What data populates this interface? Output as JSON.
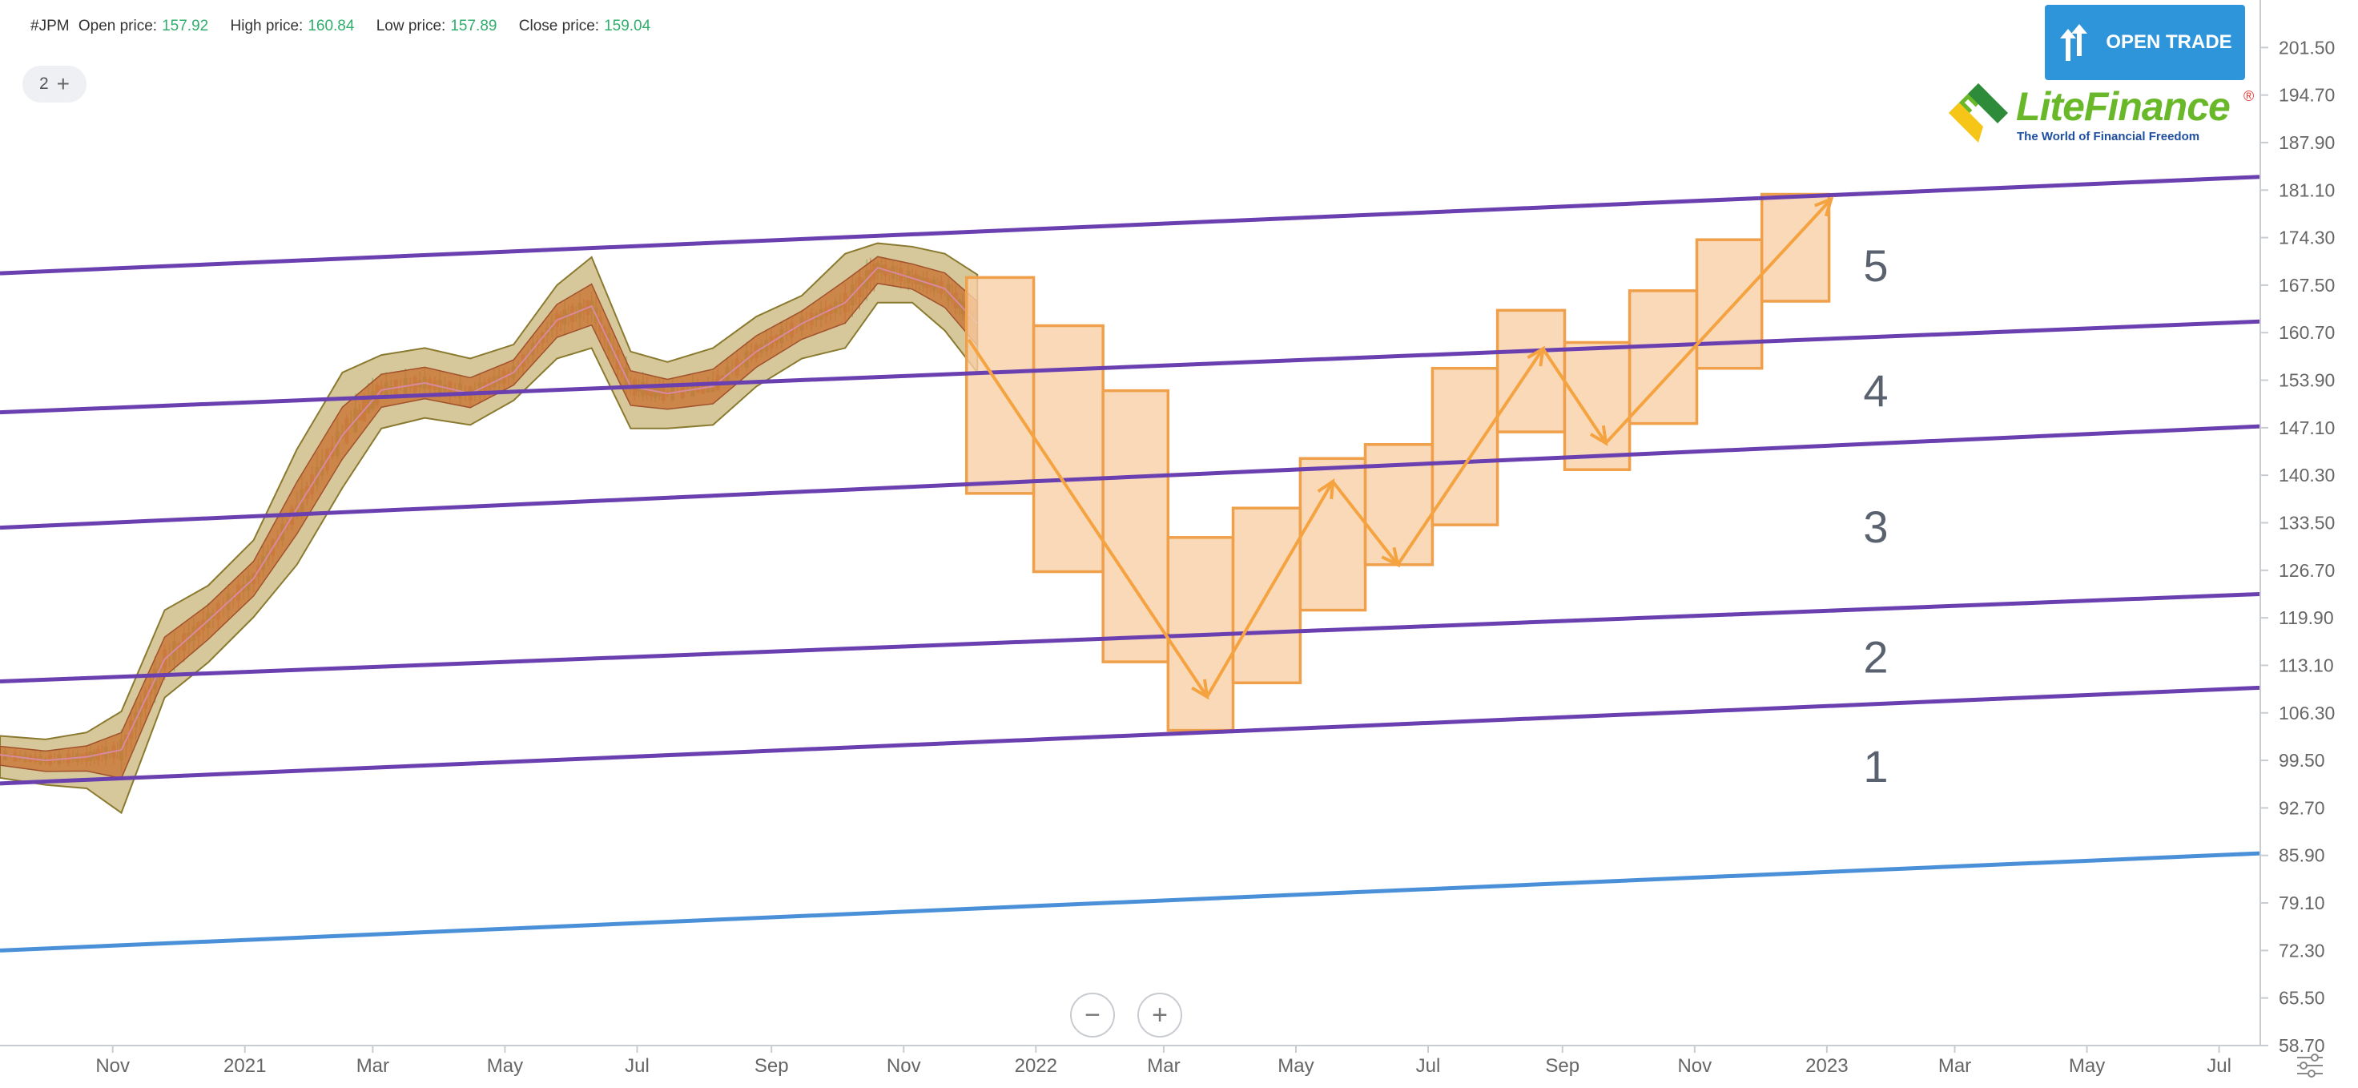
{
  "header": {
    "symbol": "#JPM",
    "open_label": "Open price:",
    "open_value": "157.92",
    "high_label": "High price:",
    "high_value": "160.84",
    "low_label": "Low price:",
    "low_value": "157.89",
    "close_label": "Close price:",
    "close_value": "159.04"
  },
  "layers": {
    "count": "2",
    "plus": "+"
  },
  "open_trade": {
    "label": "OPEN TRADE",
    "icon": "updown-arrows-icon"
  },
  "logo": {
    "name": "LiteFinance",
    "tagline": "The World of Financial Freedom",
    "reg": "®"
  },
  "zoom": {
    "minus": "−",
    "plus": "+"
  },
  "colors": {
    "channel": "#6a3fb0",
    "base_line": "#4a90d9",
    "box_fill": "#f8cfa6",
    "box_stroke": "#f0a04a",
    "band": "#c9b67a",
    "band_inner": "#c8702e",
    "up": "#2e9e4a",
    "down": "#d33a3a",
    "axis_text": "#666666",
    "zone_label": "#5a6270"
  },
  "chart_data": {
    "type": "candlestick",
    "y_ticks": [
      "201.50",
      "194.70",
      "187.90",
      "181.10",
      "174.30",
      "167.50",
      "160.70",
      "153.90",
      "147.10",
      "140.30",
      "133.50",
      "126.70",
      "119.90",
      "113.10",
      "106.30",
      "99.50",
      "92.70",
      "85.90",
      "79.10",
      "72.30",
      "65.50",
      "58.70"
    ],
    "ylim": [
      58.7,
      208.3
    ],
    "x_ticks": [
      "Nov",
      "2021",
      "Mar",
      "May",
      "Jul",
      "Sep",
      "Nov",
      "2022",
      "Mar",
      "May",
      "Jul",
      "Sep",
      "Nov",
      "2023",
      "Mar",
      "May",
      "Jul"
    ],
    "xlim": [
      "2020-09-10",
      "2023-07-20"
    ],
    "zone_labels": [
      "5",
      "4",
      "3",
      "2",
      "1"
    ],
    "channel_lines": [
      {
        "name": "",
        "start": [
          "2020-09-10",
          169.2
        ],
        "end": [
          "2023-07-20",
          183.0
        ]
      },
      {
        "name": "",
        "start": [
          "2020-09-10",
          149.3
        ],
        "end": [
          "2023-07-20",
          162.3
        ]
      },
      {
        "name": "",
        "start": [
          "2020-09-10",
          132.8
        ],
        "end": [
          "2023-07-20",
          147.3
        ]
      },
      {
        "name": "",
        "start": [
          "2020-09-10",
          110.8
        ],
        "end": [
          "2023-07-20",
          123.3
        ]
      },
      {
        "name": "",
        "start": [
          "2020-09-10",
          96.2
        ],
        "end": [
          "2023-07-20",
          109.9
        ]
      }
    ],
    "base_line": {
      "start": [
        "2020-09-10",
        72.3
      ],
      "end": [
        "2023-07-20",
        86.2
      ]
    },
    "price_band": {
      "dates": [
        "2020-09-10",
        "2020-10-01",
        "2020-10-20",
        "2020-11-05",
        "2020-11-25",
        "2020-12-15",
        "2021-01-05",
        "2021-01-25",
        "2021-02-15",
        "2021-03-05",
        "2021-03-25",
        "2021-04-15",
        "2021-05-05",
        "2021-05-25",
        "2021-06-10",
        "2021-06-28",
        "2021-07-15",
        "2021-08-05",
        "2021-08-25",
        "2021-09-15",
        "2021-10-05",
        "2021-10-20",
        "2021-11-05",
        "2021-11-20",
        "2021-12-05"
      ],
      "mid": [
        100.3,
        99.5,
        100.0,
        101.0,
        114.0,
        119.5,
        125.5,
        135.5,
        146.0,
        152.5,
        153.5,
        152.0,
        155.0,
        162.5,
        164.5,
        153.0,
        152.0,
        153.0,
        158.0,
        162.0,
        165.0,
        170.0,
        168.5,
        167.0,
        162.0
      ],
      "upper": [
        103.0,
        102.5,
        103.5,
        106.5,
        121.0,
        124.5,
        131.0,
        144.0,
        155.0,
        157.5,
        158.5,
        157.0,
        159.0,
        167.5,
        171.5,
        158.0,
        156.5,
        158.5,
        163.0,
        166.0,
        172.0,
        173.5,
        173.0,
        172.0,
        169.0
      ],
      "lower": [
        97.0,
        96.0,
        95.5,
        92.0,
        108.5,
        113.5,
        120.0,
        127.5,
        138.5,
        147.0,
        148.5,
        147.5,
        151.0,
        157.0,
        158.5,
        147.0,
        147.0,
        147.5,
        153.0,
        157.0,
        158.5,
        165.0,
        165.0,
        161.0,
        155.0
      ]
    },
    "brick_boxes": [
      {
        "start": "2021-11-30",
        "end": "2021-12-31",
        "low": 137.7,
        "high": 168.6
      },
      {
        "start": "2021-12-31",
        "end": "2022-02-01",
        "low": 126.5,
        "high": 161.7
      },
      {
        "start": "2022-02-01",
        "end": "2022-03-03",
        "low": 113.6,
        "high": 152.4
      },
      {
        "start": "2022-03-03",
        "end": "2022-04-02",
        "low": 103.8,
        "high": 131.4
      },
      {
        "start": "2022-04-02",
        "end": "2022-05-03",
        "low": 110.6,
        "high": 135.6
      },
      {
        "start": "2022-05-03",
        "end": "2022-06-02",
        "low": 121.0,
        "high": 142.7
      },
      {
        "start": "2022-06-02",
        "end": "2022-07-03",
        "low": 127.5,
        "high": 144.7
      },
      {
        "start": "2022-07-03",
        "end": "2022-08-02",
        "low": 133.2,
        "high": 155.6
      },
      {
        "start": "2022-08-02",
        "end": "2022-09-02",
        "low": 146.5,
        "high": 163.9
      },
      {
        "start": "2022-09-02",
        "end": "2022-10-02",
        "low": 141.1,
        "high": 159.3
      },
      {
        "start": "2022-10-02",
        "end": "2022-11-02",
        "low": 147.7,
        "high": 166.7
      },
      {
        "start": "2022-11-02",
        "end": "2022-12-02",
        "low": 155.6,
        "high": 174.0
      },
      {
        "start": "2022-12-02",
        "end": "2023-01-02",
        "low": 165.2,
        "high": 180.5
      }
    ],
    "forecast_path": [
      {
        "date": "2021-12-01",
        "value": 159.7
      },
      {
        "date": "2022-03-21",
        "value": 108.6,
        "arrow": true
      },
      {
        "date": "2022-05-18",
        "value": 139.4,
        "arrow": true
      },
      {
        "date": "2022-06-17",
        "value": 127.5,
        "arrow": true
      },
      {
        "date": "2022-08-23",
        "value": 158.4,
        "arrow": true
      },
      {
        "date": "2022-09-21",
        "value": 144.9,
        "arrow": true
      },
      {
        "date": "2023-01-03",
        "value": 179.8,
        "arrow": true
      }
    ]
  }
}
